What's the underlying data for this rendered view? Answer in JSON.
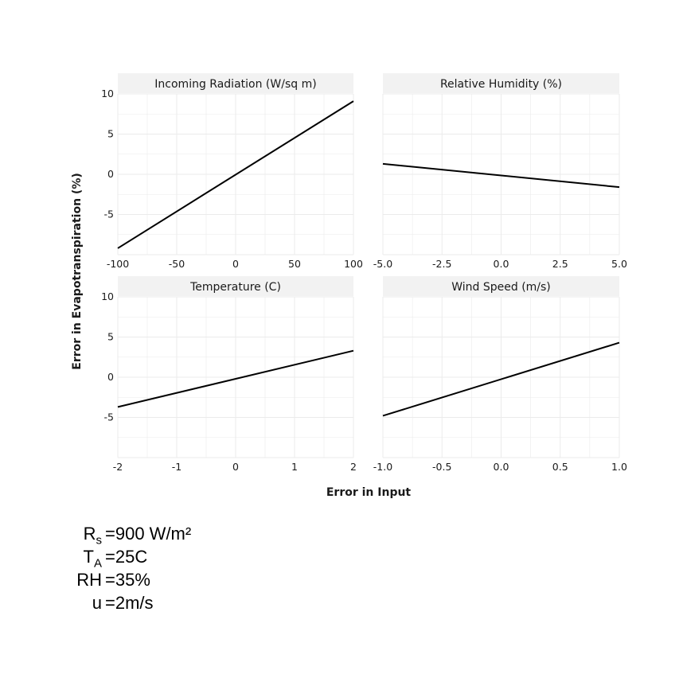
{
  "chart_data": {
    "type": "line",
    "layout": "facet-grid 2x2",
    "xlabel": "Error in Input",
    "ylabel": "Error in Evapotranspiration (%)",
    "ylim": [
      -10,
      10
    ],
    "yticks": [
      -5,
      0,
      5,
      10
    ],
    "ytick_labels": [
      "-5",
      "0",
      "5",
      "10"
    ],
    "grid": true,
    "facets": [
      {
        "title": "Incoming Radiation (W/sq m)",
        "xlim": [
          -100,
          100
        ],
        "xticks": [
          -100,
          -50,
          0,
          50,
          100
        ],
        "xtick_labels": [
          "-100",
          "-50",
          "0",
          "50",
          "100"
        ],
        "x": [
          -100,
          100
        ],
        "y": [
          -9.2,
          9.1
        ]
      },
      {
        "title": "Relative Humidity (%)",
        "xlim": [
          -5,
          5
        ],
        "xticks": [
          -5,
          -2.5,
          0,
          2.5,
          5
        ],
        "xtick_labels": [
          "-5.0",
          "-2.5",
          "0.0",
          "2.5",
          "5.0"
        ],
        "x": [
          -5,
          5
        ],
        "y": [
          1.3,
          -1.6
        ]
      },
      {
        "title": "Temperature (C)",
        "xlim": [
          -2,
          2
        ],
        "xticks": [
          -2,
          -1,
          0,
          1,
          2
        ],
        "xtick_labels": [
          "-2",
          "-1",
          "0",
          "1",
          "2"
        ],
        "x": [
          -2,
          2
        ],
        "y": [
          -3.7,
          3.3
        ]
      },
      {
        "title": "Wind Speed (m/s)",
        "xlim": [
          -1,
          1
        ],
        "xticks": [
          -1,
          -0.5,
          0,
          0.5,
          1
        ],
        "xtick_labels": [
          "-1.0",
          "-0.5",
          "0.0",
          "0.5",
          "1.0"
        ],
        "x": [
          -1,
          1
        ],
        "y": [
          -4.8,
          4.3
        ]
      }
    ]
  },
  "params": [
    {
      "name": "R",
      "sub": "s",
      "eq": "=",
      "value": "900 W/m²"
    },
    {
      "name": "T",
      "sub": "A",
      "eq": "=",
      "value": "25C"
    },
    {
      "name": "RH",
      "sub": "",
      "eq": "=",
      "value": "35%"
    },
    {
      "name": "u",
      "sub": "",
      "eq": "=",
      "value": "2m/s"
    }
  ],
  "colors": {
    "line": "#000000",
    "strip": "#f2f2f2",
    "grid": "#ebebeb",
    "text": "#1a1a1a"
  }
}
